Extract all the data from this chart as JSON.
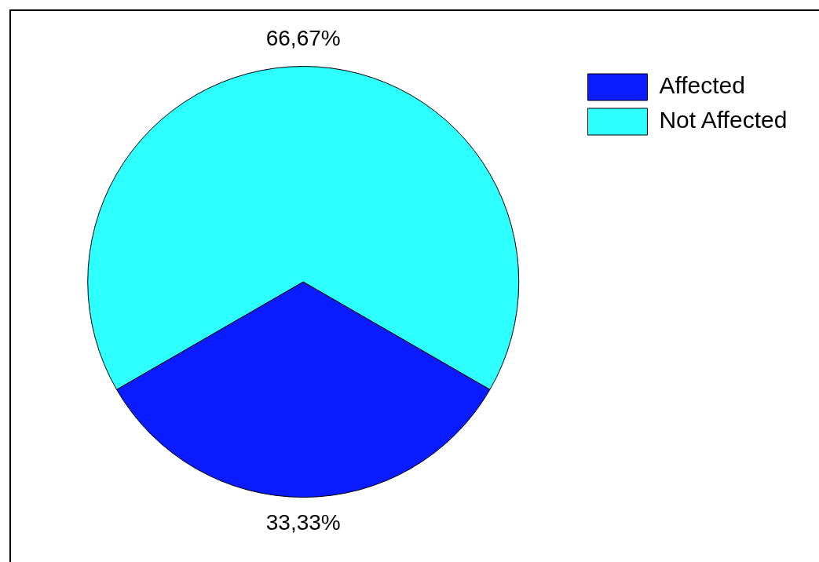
{
  "chart_data": {
    "type": "pie",
    "categories": [
      "Affected",
      "Not Affected"
    ],
    "values": [
      33.33,
      66.67
    ],
    "colors": [
      "#0a1cff",
      "#2effff"
    ],
    "value_labels": [
      "33,33%",
      "66,67%"
    ],
    "legend": "top right"
  }
}
